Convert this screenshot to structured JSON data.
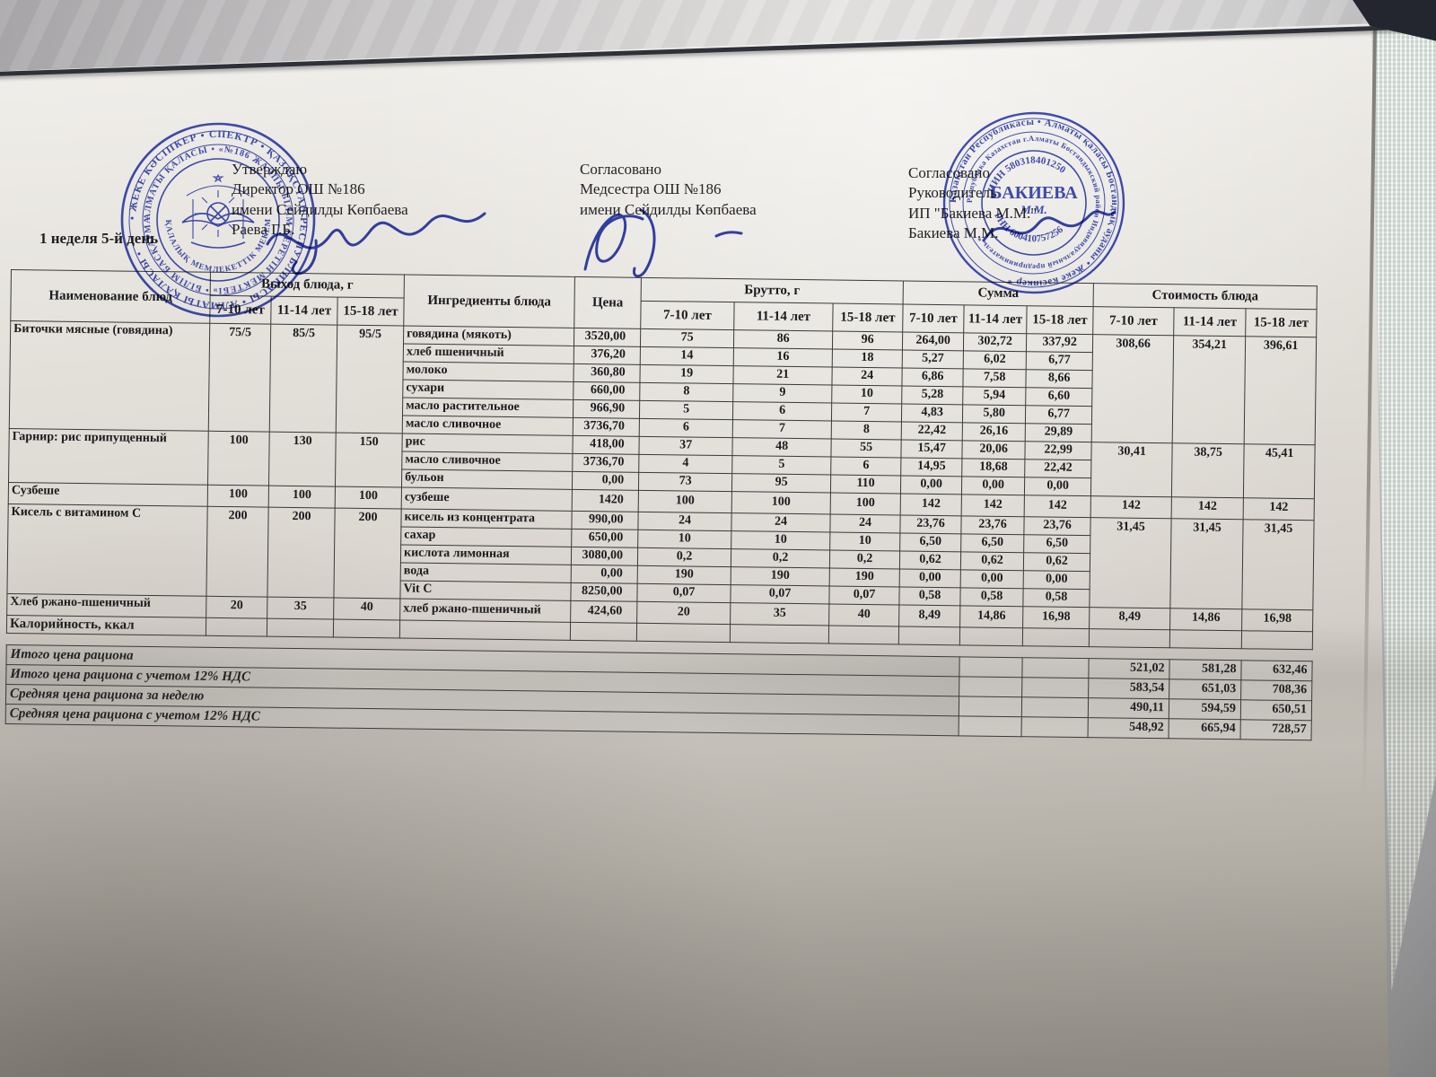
{
  "page": {
    "week_label": "1 неделя 5-й день"
  },
  "approvals": [
    {
      "l1": "Утверждаю",
      "l2": "Директор ОШ №186",
      "l3": "имени Сейдилды Көпбаева",
      "l4": "Раева Г.Б."
    },
    {
      "l1": "Согласовано",
      "l2": "Медсестра ОШ №186",
      "l3": "имени Сейдилды Көпбаева"
    },
    {
      "l1": "Согласовано",
      "l2": "Руководитель",
      "l3": "ИП \"Бакиева М.М.\"",
      "l4": "Бакиева М.М."
    }
  ],
  "stamps": {
    "school": {
      "ring_outer": "• ЖЕКЕ КӘСІПКЕР • СПЕКТР • ҚАЗАҚСТАН РЕСПУБЛИКАСЫ • АЛМАТЫ ҚАЛАСЫ •",
      "ring_middle": "АЛМАТЫ ҚАЛАСЫ • «№186 ЖАЛПЫ БІЛІМ БЕРЕТІН МЕКТЕБІ» • БІЛІМ БАСҚАРМАСЫ",
      "ring_inner": "ҚАЛАЛЫҚ МЕМЛЕКЕТТІК МЕКЕМЕ"
    },
    "provider": {
      "ring_outer": "Қазақстан Республикасы • Алматы қаласы Бостандық ауданы • Жеке кәсіпкер *",
      "ring_middle": "Республика Казахстан г.Алматы Бостандыкский район Индивидуальный предприниматель *",
      "iin": "ИИН 580318401250",
      "name": "БАКИЕВА",
      "initials": "М.М.",
      "rnn": "РНН 600410757256"
    }
  },
  "table": {
    "head": {
      "name": "Наименование блюд",
      "output_group": "Выход блюда, г",
      "ingredients": "Ингредиенты блюда",
      "price": "Цена",
      "brutto_group": "Брутто, г",
      "sum_group": "Сумма",
      "cost_group": "Стоимость блюда",
      "ages": [
        "7-10 лет",
        "11-14 лет",
        "15-18 лет"
      ]
    },
    "dishes": [
      {
        "name": "Биточки мясные (говядина)",
        "out": [
          "75/5",
          "85/5",
          "95/5"
        ],
        "cost": [
          "308,66",
          "354,21",
          "396,61"
        ],
        "ingredients": [
          {
            "n": "говядина (мякоть)",
            "p": "3520,00",
            "b": [
              "75",
              "86",
              "96"
            ],
            "s": [
              "264,00",
              "302,72",
              "337,92"
            ]
          },
          {
            "n": "хлеб пшеничный",
            "p": "376,20",
            "b": [
              "14",
              "16",
              "18"
            ],
            "s": [
              "5,27",
              "6,02",
              "6,77"
            ]
          },
          {
            "n": "молоко",
            "p": "360,80",
            "b": [
              "19",
              "21",
              "24"
            ],
            "s": [
              "6,86",
              "7,58",
              "8,66"
            ]
          },
          {
            "n": "сухари",
            "p": "660,00",
            "b": [
              "8",
              "9",
              "10"
            ],
            "s": [
              "5,28",
              "5,94",
              "6,60"
            ]
          },
          {
            "n": "масло растительное",
            "p": "966,90",
            "b": [
              "5",
              "6",
              "7"
            ],
            "s": [
              "4,83",
              "5,80",
              "6,77"
            ]
          },
          {
            "n": "масло сливочное",
            "p": "3736,70",
            "b": [
              "6",
              "7",
              "8"
            ],
            "s": [
              "22,42",
              "26,16",
              "29,89"
            ]
          }
        ]
      },
      {
        "name": "Гарнир: рис припущенный",
        "out": [
          "100",
          "130",
          "150"
        ],
        "cost": [
          "30,41",
          "38,75",
          "45,41"
        ],
        "ingredients": [
          {
            "n": "рис",
            "p": "418,00",
            "b": [
              "37",
              "48",
              "55"
            ],
            "s": [
              "15,47",
              "20,06",
              "22,99"
            ]
          },
          {
            "n": "масло сливочное",
            "p": "3736,70",
            "b": [
              "4",
              "5",
              "6"
            ],
            "s": [
              "14,95",
              "18,68",
              "22,42"
            ]
          },
          {
            "n": "бульон",
            "p": "0,00",
            "b": [
              "73",
              "95",
              "110"
            ],
            "s": [
              "0,00",
              "0,00",
              "0,00"
            ]
          }
        ]
      },
      {
        "name": "Сузбеше",
        "out": [
          "100",
          "100",
          "100"
        ],
        "cost": [
          "142",
          "142",
          "142"
        ],
        "ingredients": [
          {
            "n": "сузбеше",
            "p": "1420",
            "b": [
              "100",
              "100",
              "100"
            ],
            "s": [
              "142",
              "142",
              "142"
            ]
          }
        ]
      },
      {
        "name": "Кисель с витамином С",
        "out": [
          "200",
          "200",
          "200"
        ],
        "cost": [
          "31,45",
          "31,45",
          "31,45"
        ],
        "ingredients": [
          {
            "n": "кисель из концентрата",
            "p": "990,00",
            "b": [
              "24",
              "24",
              "24"
            ],
            "s": [
              "23,76",
              "23,76",
              "23,76"
            ]
          },
          {
            "n": "сахар",
            "p": "650,00",
            "b": [
              "10",
              "10",
              "10"
            ],
            "s": [
              "6,50",
              "6,50",
              "6,50"
            ]
          },
          {
            "n": "кислота лимонная",
            "p": "3080,00",
            "b": [
              "0,2",
              "0,2",
              "0,2"
            ],
            "s": [
              "0,62",
              "0,62",
              "0,62"
            ]
          },
          {
            "n": "вода",
            "p": "0,00",
            "b": [
              "190",
              "190",
              "190"
            ],
            "s": [
              "0,00",
              "0,00",
              "0,00"
            ]
          },
          {
            "n": "Vit C",
            "p": "8250,00",
            "b": [
              "0,07",
              "0,07",
              "0,07"
            ],
            "s": [
              "0,58",
              "0,58",
              "0,58"
            ]
          }
        ]
      },
      {
        "name": "Хлеб ржано-пшеничный",
        "out": [
          "20",
          "35",
          "40"
        ],
        "cost": [
          "8,49",
          "14,86",
          "16,98"
        ],
        "ingredients": [
          {
            "n": "хлеб ржано-пшеничный",
            "p": "424,60",
            "b": [
              "20",
              "35",
              "40"
            ],
            "s": [
              "8,49",
              "14,86",
              "16,98"
            ]
          }
        ]
      }
    ],
    "kcal_label": "Калорийность, ккал",
    "summary": [
      {
        "label": "Итого цена рациона",
        "v": [
          "521,02",
          "581,28",
          "632,46"
        ]
      },
      {
        "label": "Итого цена рациона с учетом 12% НДС",
        "v": [
          "583,54",
          "651,03",
          "708,36"
        ]
      },
      {
        "label": "Средняя цена рациона за неделю",
        "v": [
          "490,11",
          "594,59",
          "650,51"
        ]
      },
      {
        "label": "Средняя цена рациона с учетом 12% НДС",
        "v": [
          "548,92",
          "665,94",
          "728,57"
        ]
      }
    ]
  }
}
